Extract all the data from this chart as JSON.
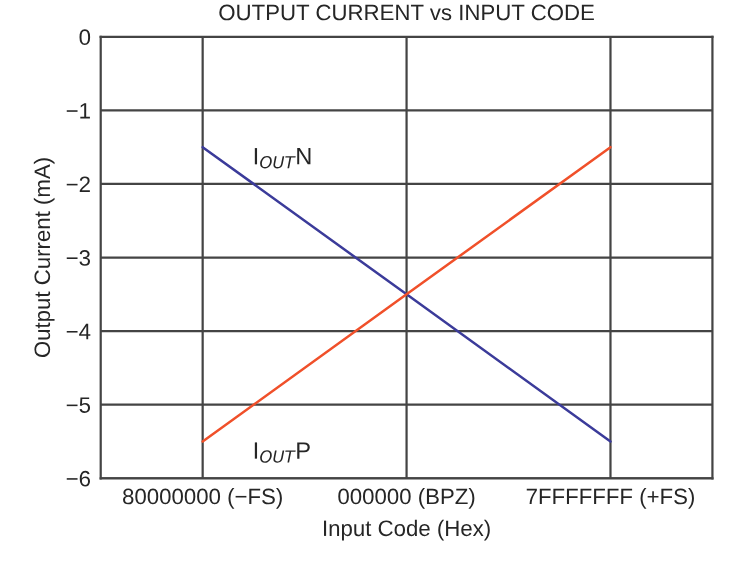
{
  "chart_data": {
    "type": "line",
    "title": "OUTPUT CURRENT vs INPUT CODE",
    "xlabel": "Input Code (Hex)",
    "ylabel": "Output Current (mA)",
    "categories": [
      "80000000 (−FS)",
      "000000 (BPZ)",
      "7FFFFFFF (+FS)"
    ],
    "series": [
      {
        "name": "I$_{OUT}$N",
        "color": "#3b3b9a",
        "values": [
          -1.5,
          -3.5,
          -5.5
        ]
      },
      {
        "name": "I$_{OUT}$P",
        "color": "#f0502a",
        "values": [
          -5.5,
          -3.5,
          -1.5
        ]
      }
    ],
    "ylim": [
      -6,
      0
    ],
    "yticks": [
      {
        "value": -6,
        "label": "−6"
      },
      {
        "value": -5,
        "label": "−5"
      },
      {
        "value": -4,
        "label": "−4"
      },
      {
        "value": -3,
        "label": "−3"
      },
      {
        "value": -2,
        "label": "−2"
      },
      {
        "value": -1,
        "label": "−1"
      },
      0
    ],
    "grid": true,
    "legend": false,
    "marker": "none",
    "line_style": "solid"
  }
}
